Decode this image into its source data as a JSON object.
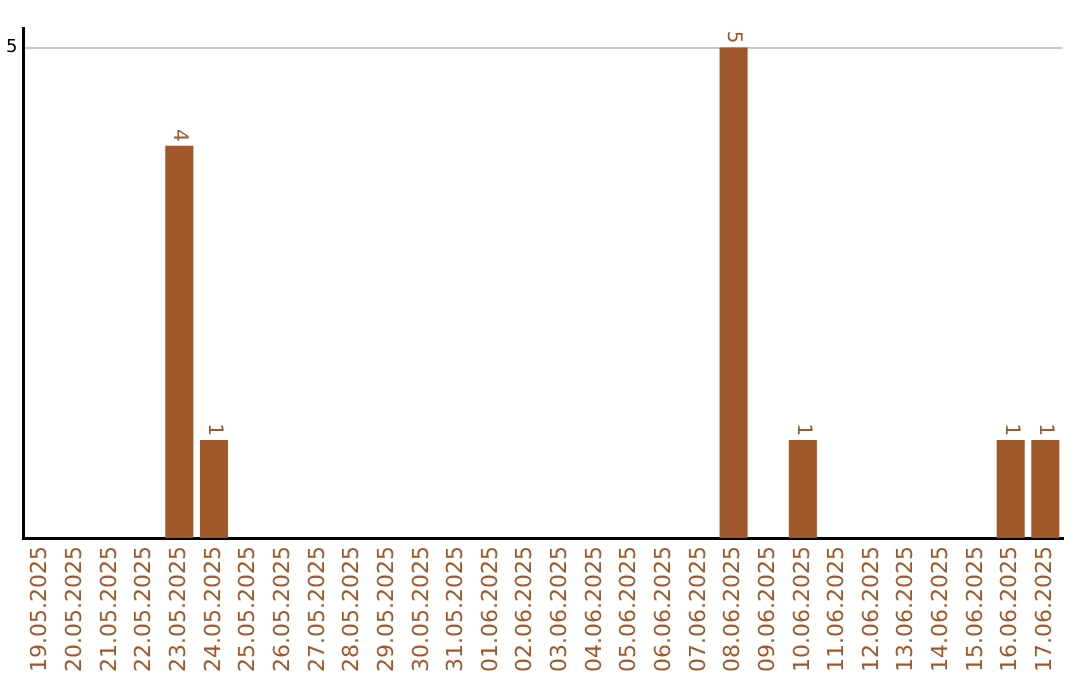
{
  "chart_data": {
    "type": "bar",
    "categories": [
      "19.05.2025",
      "20.05.2025",
      "21.05.2025",
      "22.05.2025",
      "23.05.2025",
      "24.05.2025",
      "25.05.2025",
      "26.05.2025",
      "27.05.2025",
      "28.05.2025",
      "29.05.2025",
      "30.05.2025",
      "31.05.2025",
      "01.06.2025",
      "02.06.2025",
      "03.06.2025",
      "04.06.2025",
      "05.06.2025",
      "06.06.2025",
      "07.06.2025",
      "08.06.2025",
      "09.06.2025",
      "10.06.2025",
      "11.06.2025",
      "12.06.2025",
      "13.06.2025",
      "14.06.2025",
      "15.06.2025",
      "16.06.2025",
      "17.06.2025"
    ],
    "values": [
      0,
      0,
      0,
      0,
      4,
      1,
      0,
      0,
      0,
      0,
      0,
      0,
      0,
      0,
      0,
      0,
      0,
      0,
      0,
      0,
      5,
      0,
      1,
      0,
      0,
      0,
      0,
      0,
      1,
      1
    ],
    "value_labels": [
      null,
      null,
      null,
      null,
      "4",
      "1",
      null,
      null,
      null,
      null,
      null,
      null,
      null,
      null,
      null,
      null,
      null,
      null,
      null,
      null,
      "5",
      null,
      "1",
      null,
      null,
      null,
      null,
      null,
      "1",
      "1"
    ],
    "color": "#a0582a",
    "ylim": [
      0,
      5.2
    ],
    "yticks": [
      5
    ],
    "grid": "y",
    "legend": false
  }
}
